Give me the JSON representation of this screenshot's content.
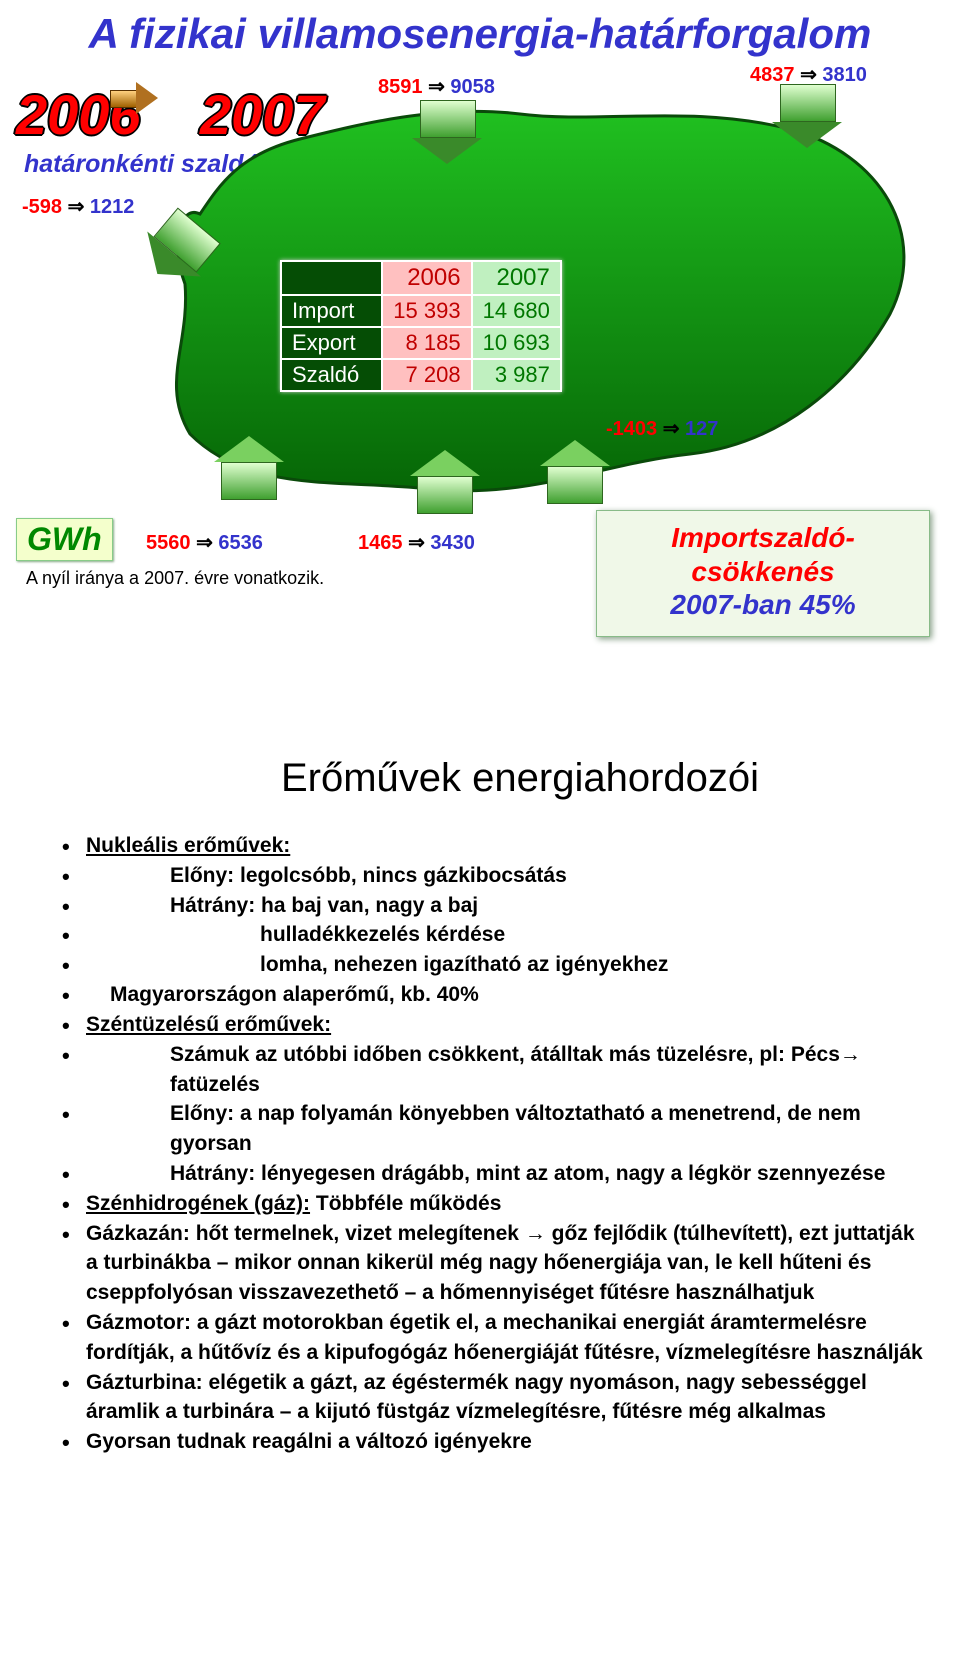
{
  "slide1": {
    "title": "A fizikai villamosenergia-határforgalom",
    "year_from": "2006",
    "year_to": "2007",
    "subtitle": "határonkénti szaldó",
    "gwh_label": "GWh",
    "note": "A nyíl iránya a 2007. évre vonatkozik.",
    "import_box_l1": "Importszaldó-",
    "import_box_l2": "csökkenés",
    "import_box_l3": "2007-ban 45%",
    "borders": {
      "nw": {
        "from": "-598",
        "to": "1212"
      },
      "n1": {
        "from": "8591",
        "to": "9058"
      },
      "ne": {
        "from": "4837",
        "to": "3810"
      },
      "e": {
        "from": "-1403",
        "to": "127"
      },
      "s1": {
        "from": "1465",
        "to": "3430"
      },
      "sw": {
        "from": "5560",
        "to": "6536"
      }
    },
    "table": {
      "h_year1": "2006",
      "h_year2": "2007",
      "rows": [
        {
          "label": "Import",
          "y1": "15 393",
          "y2": "14 680"
        },
        {
          "label": "Export",
          "y1": "8 185",
          "y2": "10 693"
        },
        {
          "label": "Szaldó",
          "y1": "7 208",
          "y2": "3 987"
        }
      ]
    },
    "colors": {
      "title": "#3333cc",
      "year_red": "#ff0000",
      "country_fill": "#0a8a0a",
      "country_stroke": "#0d4d0d",
      "table_label_bg": "#054d05",
      "col2006_bg": "#ffc0c0",
      "col2006_fg": "#c00000",
      "col2007_bg": "#c0f0c0",
      "col2007_fg": "#007700"
    }
  },
  "slide2": {
    "title": "Erőművek energiahordozói",
    "items": [
      {
        "text": "Nukleális erőművek:",
        "cls": "uline",
        "indent": 0
      },
      {
        "text": "Előny: legolcsóbb, nincs gázkibocsátás",
        "indent": 1
      },
      {
        "text": "Hátrány: ha baj van, nagy a baj",
        "indent": 1
      },
      {
        "text": "hulladékkezelés kérdése",
        "indent": 2
      },
      {
        "text": "lomha, nehezen igazítható az igényekhez",
        "indent": 2
      },
      {
        "text": "Magyarországon alaperőmű, kb. 40%",
        "indent": "0b"
      },
      {
        "text": "Széntüzelésű erőművek:",
        "cls": "uline",
        "indent": 0
      },
      {
        "text": "Számuk az utóbbi időben csökkent, átálltak más tüzelésre, pl: Pécs→ fatüzelés",
        "indent": 1
      },
      {
        "text": "Előny: a nap folyamán könyebben változtatható a menetrend, de nem gyorsan",
        "indent": 1
      },
      {
        "text": "Hátrány: lényegesen drágább, mint az atom, nagy a légkör szennyezése",
        "indent": 1
      },
      {
        "text": "Szénhidrogének (gáz):    Többféle működés",
        "cls": "u-prefix",
        "indent": 0
      },
      {
        "text": "Gázkazán: hőt termelnek, vizet melegítenek → gőz fejlődik (túlhevített), ezt juttatják a turbinákba – mikor onnan kikerül még nagy hőenergiája van, le kell hűteni és cseppfolyósan visszavezethető – a hőmennyiséget fűtésre használhatjuk",
        "indent": 0
      },
      {
        "text": "Gázmotor: a gázt motorokban égetik el, a mechanikai energiát áramtermelésre fordítják, a hűtővíz és a kipufogógáz hőenergiáját fűtésre, vízmelegítésre használják",
        "indent": 0
      },
      {
        "text": "Gázturbina: elégetik a gázt, az égéstermék nagy nyomáson, nagy sebességgel áramlik a turbinára – a kijutó füstgáz vízmelegítésre, fűtésre még alkalmas",
        "indent": 0
      },
      {
        "text": "Gyorsan tudnak reagálni a változó igényekre",
        "indent": 0
      }
    ]
  }
}
